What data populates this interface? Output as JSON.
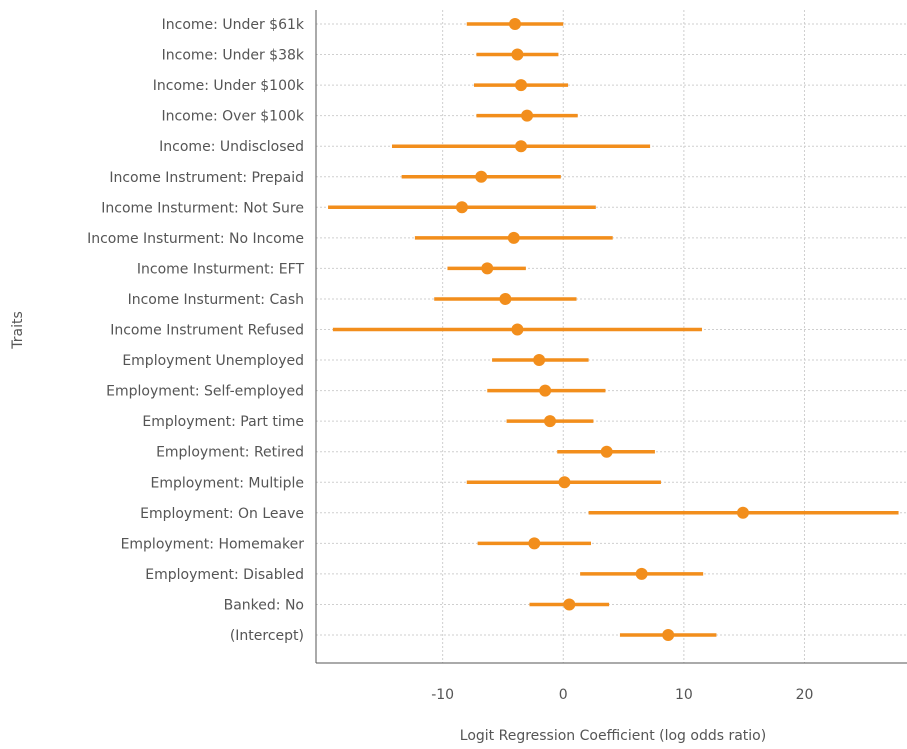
{
  "chart_data": {
    "type": "forest",
    "xlabel": "Logit Regression Coefficient (log odds ratio)",
    "ylabel": "Traits",
    "xlim": [
      -20.5,
      28.5
    ],
    "xticks": [
      -10,
      0,
      10,
      20
    ],
    "xtick_labels": [
      "-10",
      "0",
      "10",
      "20"
    ],
    "grid": "dotted, both axes",
    "colors": {
      "marker": "#f28e1c",
      "axis": "#555555",
      "grid": "#cfcfcf"
    },
    "rows": [
      {
        "label": "Income: Under $61k",
        "estimate": -4.0,
        "low": -8.0,
        "high": 0.0
      },
      {
        "label": "Income: Under $38k",
        "estimate": -3.8,
        "low": -7.2,
        "high": -0.4
      },
      {
        "label": "Income: Under $100k",
        "estimate": -3.5,
        "low": -7.4,
        "high": 0.4
      },
      {
        "label": "Income: Over $100k",
        "estimate": -3.0,
        "low": -7.2,
        "high": 1.2
      },
      {
        "label": "Income: Undisclosed",
        "estimate": -3.5,
        "low": -14.2,
        "high": 7.2
      },
      {
        "label": "Income Instrument: Prepaid",
        "estimate": -6.8,
        "low": -13.4,
        "high": -0.2
      },
      {
        "label": "Income Insturment: Not Sure",
        "estimate": -8.4,
        "low": -19.5,
        "high": 2.7
      },
      {
        "label": "Income Insturment: No Income",
        "estimate": -4.1,
        "low": -12.3,
        "high": 4.1
      },
      {
        "label": "Income Insturment: EFT",
        "estimate": -6.3,
        "low": -9.6,
        "high": -3.1
      },
      {
        "label": "Income Insturment: Cash",
        "estimate": -4.8,
        "low": -10.7,
        "high": 1.1
      },
      {
        "label": "Income Instrument Refused",
        "estimate": -3.8,
        "low": -19.1,
        "high": 11.5
      },
      {
        "label": "Employment Unemployed",
        "estimate": -2.0,
        "low": -5.9,
        "high": 2.1
      },
      {
        "label": "Employment: Self-employed",
        "estimate": -1.5,
        "low": -6.3,
        "high": 3.5
      },
      {
        "label": "Employment: Part time",
        "estimate": -1.1,
        "low": -4.7,
        "high": 2.5
      },
      {
        "label": "Employment: Retired",
        "estimate": 3.6,
        "low": -0.5,
        "high": 7.6
      },
      {
        "label": "Employment: Multiple",
        "estimate": 0.1,
        "low": -8.0,
        "high": 8.1
      },
      {
        "label": "Employment: On Leave",
        "estimate": 14.9,
        "low": 2.1,
        "high": 27.8
      },
      {
        "label": "Employment: Homemaker",
        "estimate": -2.4,
        "low": -7.1,
        "high": 2.3
      },
      {
        "label": "Employment: Disabled",
        "estimate": 6.5,
        "low": 1.4,
        "high": 11.6
      },
      {
        "label": "Banked: No",
        "estimate": 0.5,
        "low": -2.8,
        "high": 3.8
      },
      {
        "label": "(Intercept)",
        "estimate": 8.7,
        "low": 4.7,
        "high": 12.7
      }
    ]
  }
}
